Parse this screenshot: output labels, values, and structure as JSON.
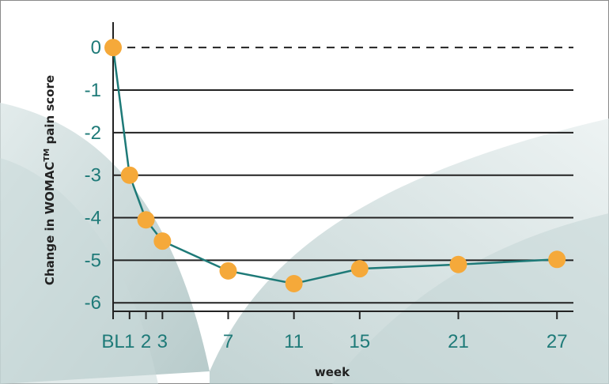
{
  "chart_data": {
    "type": "line",
    "title": "",
    "xlabel": "week",
    "ylabel": {
      "prefix": "Change in WOMAC",
      "superscript": "TM",
      "suffix": " pain score"
    },
    "x_tick_labels": [
      {
        "x": 0,
        "label": "BL"
      },
      {
        "x": 1,
        "label": "1"
      },
      {
        "x": 2,
        "label": "2"
      },
      {
        "x": 3,
        "label": "3"
      },
      {
        "x": 7,
        "label": "7"
      },
      {
        "x": 11,
        "label": "11"
      },
      {
        "x": 15,
        "label": "15"
      },
      {
        "x": 21,
        "label": "21"
      },
      {
        "x": 27,
        "label": "27"
      }
    ],
    "y_ticks": [
      0,
      -1,
      -2,
      -3,
      -4,
      -5,
      -6
    ],
    "y_tick_labels": [
      "0",
      "-1",
      "-2",
      "-3",
      "-4",
      "-5",
      "-6"
    ],
    "ylim": [
      -6.2,
      0.3
    ],
    "xlim": [
      0,
      28
    ],
    "grid": "horizontal",
    "zero_line_style": "dashed",
    "series": [
      {
        "x": [
          0,
          1,
          2,
          3,
          7,
          11,
          15,
          21,
          27
        ],
        "y": [
          0,
          -3.0,
          -4.05,
          -4.55,
          -5.25,
          -5.55,
          -5.2,
          -5.1,
          -4.98
        ]
      }
    ],
    "colors": {
      "line": "#1e7a78",
      "marker": "#f5a93a",
      "tick_text": "#1e7a78",
      "grid": "#222222",
      "background_swoosh": "#b5c9c9"
    }
  }
}
